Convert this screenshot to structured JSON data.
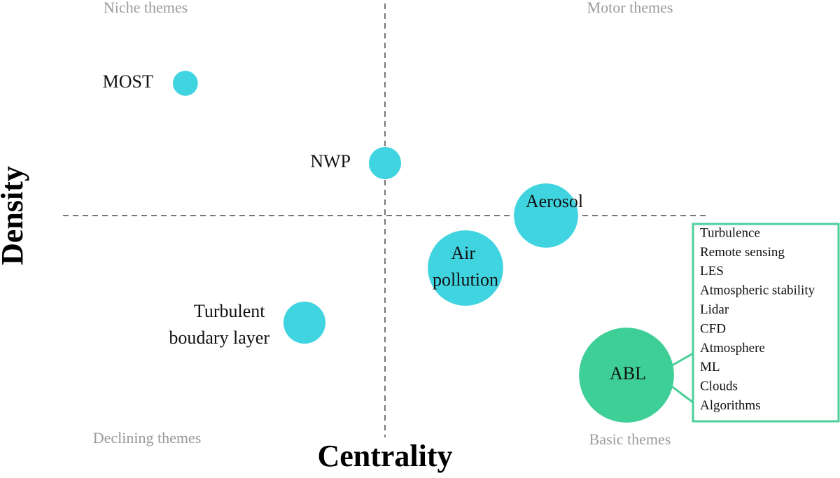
{
  "chart_data": {
    "type": "bubble",
    "x_label": "Centrality",
    "y_label": "Density",
    "quadrant_labels": [
      "Niche themes",
      "Motor themes",
      "Declining themes",
      "Basic themes"
    ],
    "xlim": [
      -1,
      1
    ],
    "ylim": [
      -1,
      1
    ],
    "points": [
      {
        "name": "MOST",
        "x": -0.62,
        "y": 0.63,
        "size": 3.2,
        "color": "#40d4e0"
      },
      {
        "name": "NWP",
        "x": 0,
        "y": 0.25,
        "size": 5.3,
        "color": "#40d4e0"
      },
      {
        "name": "Aerosol",
        "x": 0.5,
        "y": 0,
        "size": 21,
        "color": "#40d4e0"
      },
      {
        "name": "Air pollution",
        "x": 0.25,
        "y": -0.25,
        "size": 29,
        "color": "#40d4e0"
      },
      {
        "name": "Turbulent boudary layer",
        "x": -0.25,
        "y": -0.51,
        "size": 9,
        "color": "#40d4e0"
      },
      {
        "name": "ABL",
        "x": 0.75,
        "y": -0.76,
        "size": 46,
        "color": "#3ecf96"
      }
    ],
    "keywords": {
      "color": "#4ccf9a",
      "items": [
        "Turbulence",
        "Remote sensing",
        "LES",
        "Atmospheric stability",
        "Lidar",
        "CFD",
        "Atmosphere",
        "ML",
        "Clouds",
        "Algorithms"
      ]
    }
  }
}
